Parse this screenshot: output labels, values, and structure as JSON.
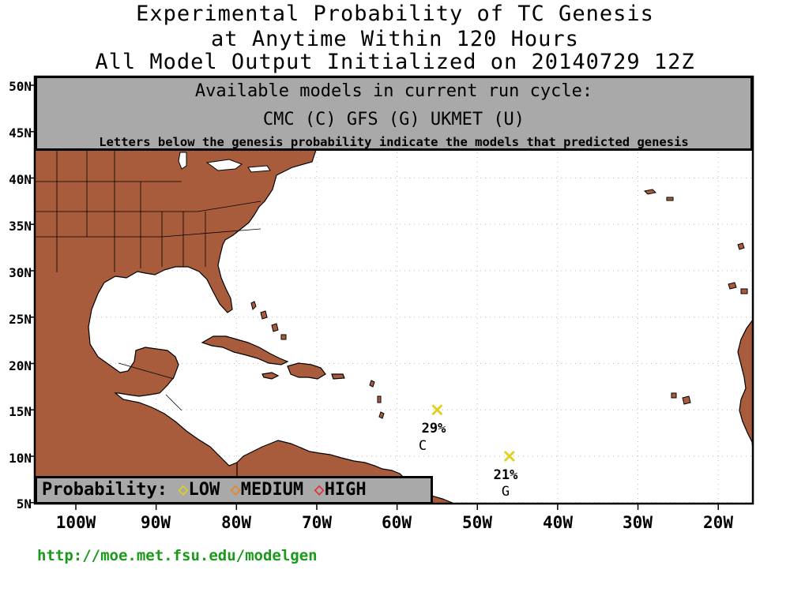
{
  "title": {
    "line1": "Experimental Probability of TC Genesis",
    "line2": "at Anytime Within 120 Hours",
    "line3": "All Model Output Initialized on 20140729 12Z"
  },
  "models_box": {
    "heading": "Available models in current run cycle:",
    "models": "CMC (C) GFS (G)  UKMET (U)",
    "note": "Letters below the genesis probability indicate the models that predicted genesis"
  },
  "axes": {
    "lat_labels": [
      "50N",
      "45N",
      "40N",
      "35N",
      "30N",
      "25N",
      "20N",
      "15N",
      "10N",
      "5N"
    ],
    "lon_labels": [
      "100W",
      "90W",
      "80W",
      "70W",
      "60W",
      "50W",
      "40W",
      "30W",
      "20W"
    ]
  },
  "legend": {
    "label": "Probability:",
    "levels": [
      {
        "name": "LOW",
        "color": "#e0d020"
      },
      {
        "name": "MEDIUM",
        "color": "#e8852a"
      },
      {
        "name": "HIGH",
        "color": "#e0303a"
      }
    ]
  },
  "storms": [
    {
      "lon_w": 55,
      "lat_n": 15,
      "probability": "29%",
      "models": "C",
      "color": "#e0d020"
    },
    {
      "lon_w": 46,
      "lat_n": 10,
      "probability": "21%",
      "models": "G",
      "color": "#e0d020"
    }
  ],
  "colors": {
    "land": "#a95c3b",
    "ocean": "#ffffff",
    "panel": "#a9a9a9",
    "url": "#1a9a1a"
  },
  "footer": {
    "url": "http://moe.met.fsu.edu/modelgen"
  }
}
